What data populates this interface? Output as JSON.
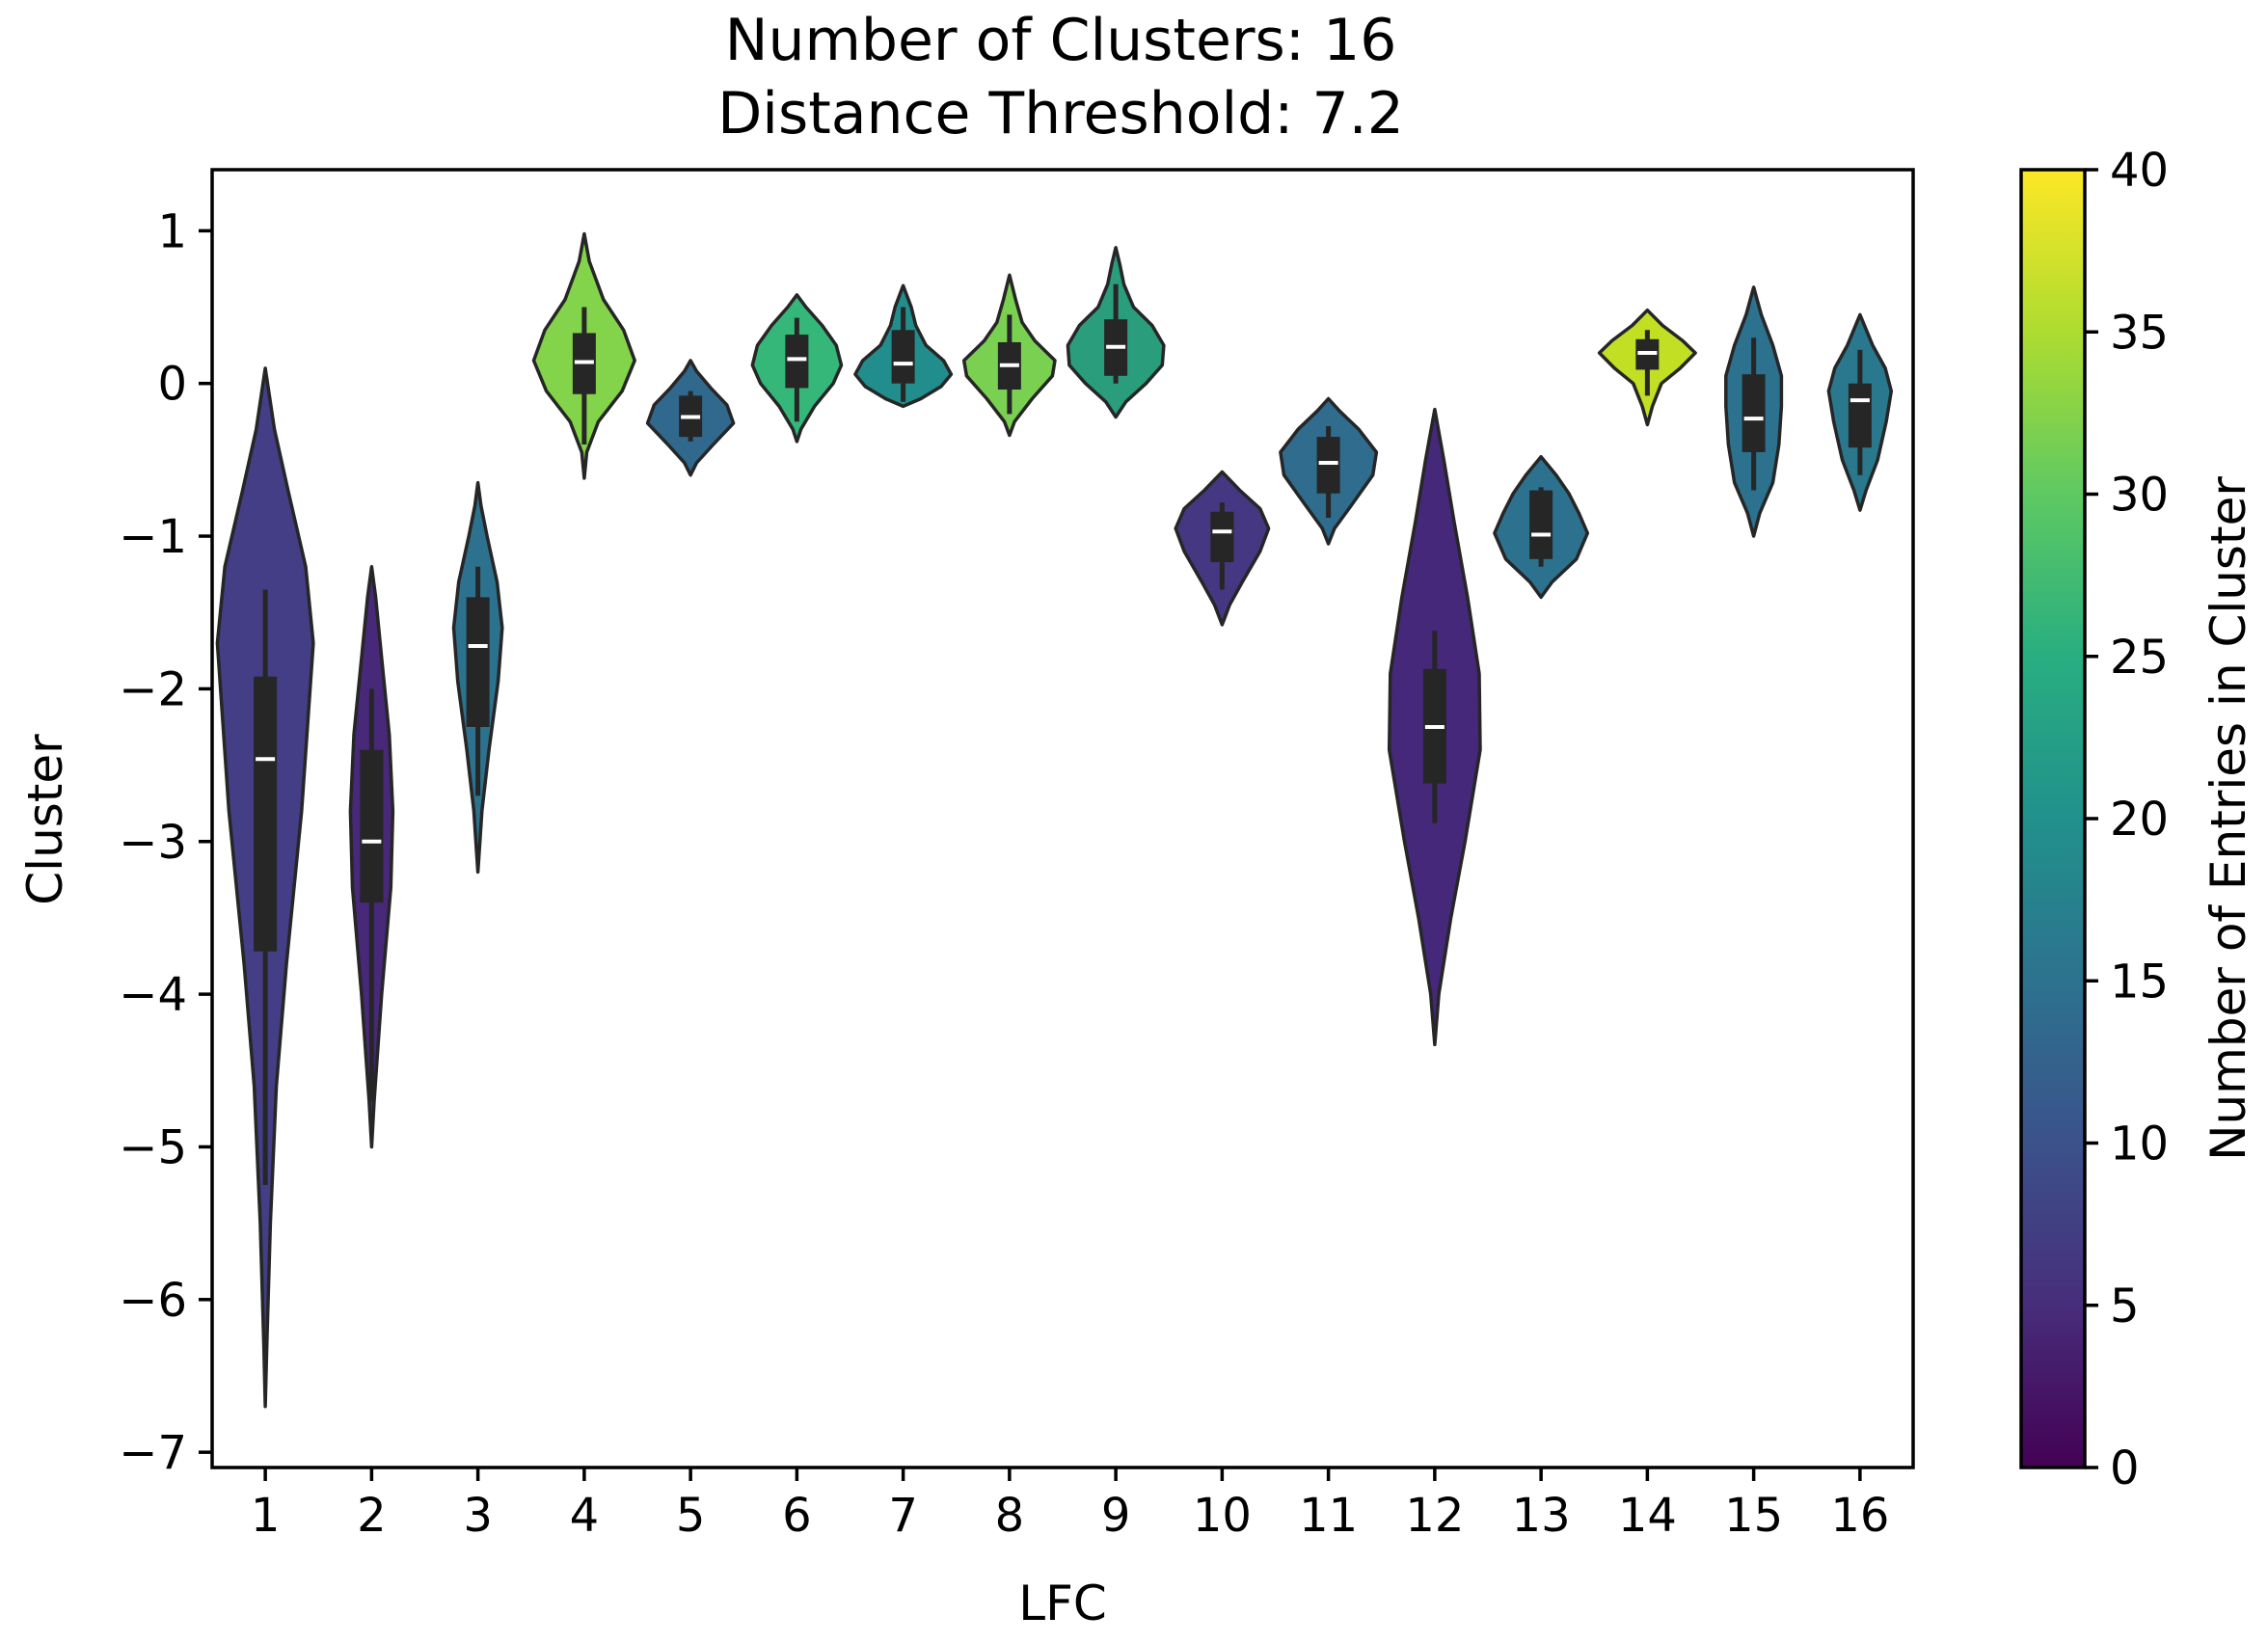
{
  "chart_data": {
    "type": "violin",
    "title": [
      "Number of Clusters: 16",
      "Distance Threshold: 7.2"
    ],
    "xlabel": "LFC",
    "ylabel": "Cluster",
    "ylim": [
      -7.1,
      1.4
    ],
    "yticks": [
      1,
      0,
      -1,
      -2,
      -3,
      -4,
      -5,
      -6,
      -7
    ],
    "ytick_labels": [
      "1",
      "0",
      "−1",
      "−2",
      "−3",
      "−4",
      "−5",
      "−6",
      "−7"
    ],
    "categories": [
      "1",
      "2",
      "3",
      "4",
      "5",
      "6",
      "7",
      "8",
      "9",
      "10",
      "11",
      "12",
      "13",
      "14",
      "15",
      "16"
    ],
    "colorbar": {
      "label": "Number of Entries in Cluster",
      "range": [
        0,
        40
      ],
      "ticks": [
        0,
        5,
        10,
        15,
        20,
        25,
        30,
        35,
        40
      ],
      "tick_labels": [
        "0",
        "5",
        "10",
        "15",
        "20",
        "25",
        "30",
        "35",
        "40"
      ],
      "colormap": "viridis"
    },
    "violins": [
      {
        "cluster": "1",
        "count": 10,
        "color": "#433e85",
        "vmin": -6.7,
        "vmax": 0.1,
        "whisker_lo": -5.25,
        "whisker_hi": -1.35,
        "q1": -3.72,
        "q3": -1.92,
        "median": -2.46,
        "profile": [
          [
            -6.7,
            0.0
          ],
          [
            -6.3,
            0.03
          ],
          [
            -5.5,
            0.1
          ],
          [
            -4.6,
            0.22
          ],
          [
            -3.8,
            0.42
          ],
          [
            -2.8,
            0.72
          ],
          [
            -1.7,
            0.95
          ],
          [
            -1.2,
            0.8
          ],
          [
            -0.7,
            0.45
          ],
          [
            -0.3,
            0.18
          ],
          [
            0.1,
            0.0
          ]
        ]
      },
      {
        "cluster": "2",
        "count": 5,
        "color": "#482878",
        "vmin": -5.0,
        "vmax": -1.2,
        "whisker_lo": -4.7,
        "whisker_hi": -2.0,
        "q1": -3.4,
        "q3": -2.4,
        "median": -3.0,
        "profile": [
          [
            -5.0,
            0.0
          ],
          [
            -4.7,
            0.05
          ],
          [
            -4.0,
            0.2
          ],
          [
            -3.3,
            0.38
          ],
          [
            -2.8,
            0.42
          ],
          [
            -2.3,
            0.35
          ],
          [
            -1.8,
            0.2
          ],
          [
            -1.4,
            0.08
          ],
          [
            -1.2,
            0.0
          ]
        ]
      },
      {
        "cluster": "3",
        "count": 17,
        "color": "#2c728e",
        "vmin": -3.2,
        "vmax": -0.65,
        "whisker_lo": -2.7,
        "whisker_hi": -1.2,
        "q1": -2.25,
        "q3": -1.4,
        "median": -1.72,
        "profile": [
          [
            -3.2,
            0.0
          ],
          [
            -2.8,
            0.08
          ],
          [
            -2.4,
            0.22
          ],
          [
            -1.95,
            0.4
          ],
          [
            -1.6,
            0.48
          ],
          [
            -1.3,
            0.38
          ],
          [
            -1.0,
            0.18
          ],
          [
            -0.8,
            0.06
          ],
          [
            -0.65,
            0.0
          ]
        ]
      },
      {
        "cluster": "4",
        "count": 31,
        "color": "#84d44b",
        "vmin": -0.62,
        "vmax": 0.98,
        "whisker_lo": -0.4,
        "whisker_hi": 0.5,
        "q1": -0.07,
        "q3": 0.33,
        "median": 0.14,
        "profile": [
          [
            -0.62,
            0.0
          ],
          [
            -0.45,
            0.05
          ],
          [
            -0.25,
            0.28
          ],
          [
            -0.05,
            0.75
          ],
          [
            0.15,
            1.0
          ],
          [
            0.35,
            0.78
          ],
          [
            0.55,
            0.38
          ],
          [
            0.8,
            0.1
          ],
          [
            0.98,
            0.0
          ]
        ]
      },
      {
        "cluster": "5",
        "count": 13,
        "color": "#31688e",
        "vmin": -0.6,
        "vmax": 0.15,
        "whisker_lo": -0.38,
        "whisker_hi": -0.05,
        "q1": -0.35,
        "q3": -0.08,
        "median": -0.22,
        "profile": [
          [
            -0.6,
            0.0
          ],
          [
            -0.52,
            0.12
          ],
          [
            -0.4,
            0.45
          ],
          [
            -0.26,
            0.85
          ],
          [
            -0.14,
            0.72
          ],
          [
            -0.03,
            0.4
          ],
          [
            0.08,
            0.12
          ],
          [
            0.15,
            0.0
          ]
        ]
      },
      {
        "cluster": "6",
        "count": 24,
        "color": "#35b779",
        "vmin": -0.38,
        "vmax": 0.58,
        "whisker_lo": -0.25,
        "whisker_hi": 0.43,
        "q1": -0.03,
        "q3": 0.32,
        "median": 0.16,
        "profile": [
          [
            -0.38,
            0.0
          ],
          [
            -0.3,
            0.08
          ],
          [
            -0.15,
            0.35
          ],
          [
            0.0,
            0.72
          ],
          [
            0.12,
            0.88
          ],
          [
            0.25,
            0.78
          ],
          [
            0.38,
            0.5
          ],
          [
            0.5,
            0.18
          ],
          [
            0.58,
            0.0
          ]
        ]
      },
      {
        "cluster": "7",
        "count": 19,
        "color": "#228d8d",
        "vmin": -0.15,
        "vmax": 0.64,
        "whisker_lo": -0.12,
        "whisker_hi": 0.5,
        "q1": 0.0,
        "q3": 0.35,
        "median": 0.13,
        "profile": [
          [
            -0.15,
            0.0
          ],
          [
            -0.1,
            0.35
          ],
          [
            -0.02,
            0.75
          ],
          [
            0.06,
            0.95
          ],
          [
            0.15,
            0.8
          ],
          [
            0.25,
            0.45
          ],
          [
            0.38,
            0.25
          ],
          [
            0.5,
            0.16
          ],
          [
            0.64,
            0.0
          ]
        ]
      },
      {
        "cluster": "8",
        "count": 29,
        "color": "#7ad151",
        "vmin": -0.34,
        "vmax": 0.71,
        "whisker_lo": -0.2,
        "whisker_hi": 0.45,
        "q1": -0.04,
        "q3": 0.27,
        "median": 0.12,
        "profile": [
          [
            -0.34,
            0.0
          ],
          [
            -0.25,
            0.1
          ],
          [
            -0.1,
            0.45
          ],
          [
            0.05,
            0.85
          ],
          [
            0.15,
            0.9
          ],
          [
            0.28,
            0.5
          ],
          [
            0.4,
            0.25
          ],
          [
            0.55,
            0.12
          ],
          [
            0.71,
            0.0
          ]
        ]
      },
      {
        "cluster": "9",
        "count": 23,
        "color": "#2a9d7c",
        "vmin": -0.22,
        "vmax": 0.89,
        "whisker_lo": 0.0,
        "whisker_hi": 0.65,
        "q1": 0.05,
        "q3": 0.42,
        "median": 0.24,
        "profile": [
          [
            -0.22,
            0.0
          ],
          [
            -0.12,
            0.2
          ],
          [
            0.0,
            0.6
          ],
          [
            0.12,
            0.92
          ],
          [
            0.25,
            0.95
          ],
          [
            0.38,
            0.72
          ],
          [
            0.5,
            0.35
          ],
          [
            0.65,
            0.16
          ],
          [
            0.78,
            0.08
          ],
          [
            0.89,
            0.0
          ]
        ]
      },
      {
        "cluster": "10",
        "count": 7,
        "color": "#453781",
        "vmin": -1.58,
        "vmax": -0.58,
        "whisker_lo": -1.35,
        "whisker_hi": -0.78,
        "q1": -1.17,
        "q3": -0.84,
        "median": -0.97,
        "profile": [
          [
            -1.58,
            0.0
          ],
          [
            -1.45,
            0.15
          ],
          [
            -1.3,
            0.4
          ],
          [
            -1.1,
            0.75
          ],
          [
            -0.95,
            0.92
          ],
          [
            -0.82,
            0.75
          ],
          [
            -0.7,
            0.35
          ],
          [
            -0.58,
            0.0
          ]
        ]
      },
      {
        "cluster": "11",
        "count": 16,
        "color": "#2f6c8e",
        "vmin": -1.05,
        "vmax": -0.1,
        "whisker_lo": -0.88,
        "whisker_hi": -0.28,
        "q1": -0.72,
        "q3": -0.35,
        "median": -0.52,
        "profile": [
          [
            -1.05,
            0.0
          ],
          [
            -0.95,
            0.12
          ],
          [
            -0.8,
            0.45
          ],
          [
            -0.6,
            0.88
          ],
          [
            -0.45,
            0.95
          ],
          [
            -0.3,
            0.6
          ],
          [
            -0.18,
            0.22
          ],
          [
            -0.1,
            0.0
          ]
        ]
      },
      {
        "cluster": "12",
        "count": 4,
        "color": "#45287a",
        "vmin": -4.33,
        "vmax": -0.17,
        "whisker_lo": -2.88,
        "whisker_hi": -1.62,
        "q1": -2.62,
        "q3": -1.87,
        "median": -2.25,
        "profile": [
          [
            -4.33,
            0.0
          ],
          [
            -4.0,
            0.08
          ],
          [
            -3.5,
            0.32
          ],
          [
            -3.0,
            0.6
          ],
          [
            -2.4,
            0.9
          ],
          [
            -1.9,
            0.88
          ],
          [
            -1.4,
            0.65
          ],
          [
            -0.9,
            0.38
          ],
          [
            -0.5,
            0.18
          ],
          [
            -0.17,
            0.0
          ]
        ]
      },
      {
        "cluster": "13",
        "count": 17,
        "color": "#2c728e",
        "vmin": -1.4,
        "vmax": -0.48,
        "whisker_lo": -1.2,
        "whisker_hi": -0.68,
        "q1": -1.15,
        "q3": -0.7,
        "median": -0.99,
        "profile": [
          [
            -1.4,
            0.0
          ],
          [
            -1.3,
            0.22
          ],
          [
            -1.15,
            0.7
          ],
          [
            -0.98,
            0.92
          ],
          [
            -0.85,
            0.75
          ],
          [
            -0.72,
            0.55
          ],
          [
            -0.6,
            0.3
          ],
          [
            -0.48,
            0.0
          ]
        ]
      },
      {
        "cluster": "14",
        "count": 36,
        "color": "#c2df23",
        "vmin": -0.27,
        "vmax": 0.48,
        "whisker_lo": -0.08,
        "whisker_hi": 0.35,
        "q1": 0.09,
        "q3": 0.29,
        "median": 0.2,
        "profile": [
          [
            -0.27,
            0.0
          ],
          [
            -0.15,
            0.1
          ],
          [
            0.0,
            0.28
          ],
          [
            0.1,
            0.65
          ],
          [
            0.2,
            0.95
          ],
          [
            0.28,
            0.7
          ],
          [
            0.38,
            0.3
          ],
          [
            0.48,
            0.0
          ]
        ]
      },
      {
        "cluster": "15",
        "count": 17,
        "color": "#2c728e",
        "vmin": -1.0,
        "vmax": 0.63,
        "whisker_lo": -0.7,
        "whisker_hi": 0.3,
        "q1": -0.45,
        "q3": 0.06,
        "median": -0.23,
        "profile": [
          [
            -1.0,
            0.0
          ],
          [
            -0.85,
            0.12
          ],
          [
            -0.65,
            0.38
          ],
          [
            -0.4,
            0.5
          ],
          [
            -0.15,
            0.55
          ],
          [
            0.05,
            0.55
          ],
          [
            0.25,
            0.38
          ],
          [
            0.45,
            0.15
          ],
          [
            0.63,
            0.0
          ]
        ]
      },
      {
        "cluster": "16",
        "count": 18,
        "color": "#2a788e",
        "vmin": -0.83,
        "vmax": 0.45,
        "whisker_lo": -0.6,
        "whisker_hi": 0.22,
        "q1": -0.42,
        "q3": 0.0,
        "median": -0.11,
        "profile": [
          [
            -0.83,
            0.0
          ],
          [
            -0.7,
            0.12
          ],
          [
            -0.5,
            0.35
          ],
          [
            -0.25,
            0.52
          ],
          [
            -0.05,
            0.62
          ],
          [
            0.1,
            0.5
          ],
          [
            0.25,
            0.25
          ],
          [
            0.45,
            0.0
          ]
        ]
      }
    ]
  }
}
